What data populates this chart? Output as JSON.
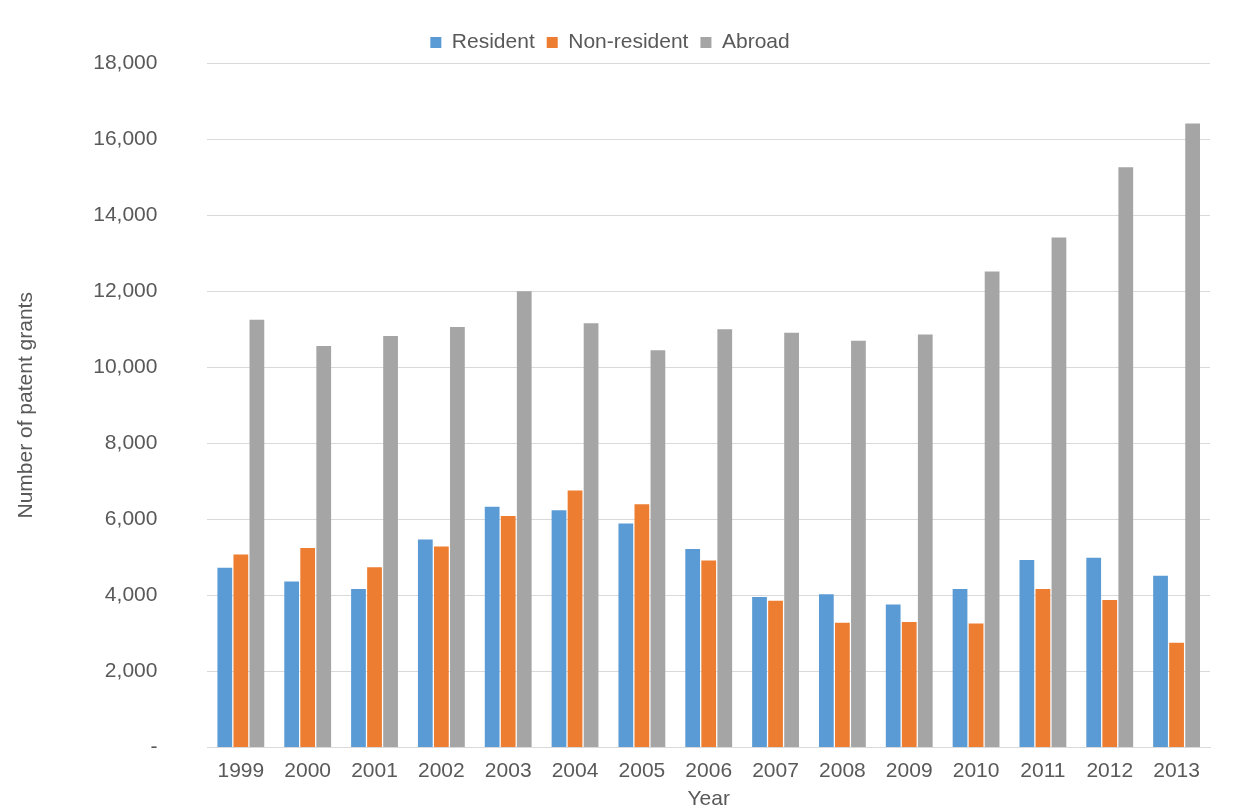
{
  "chart_data": {
    "type": "bar",
    "xlabel": "Year",
    "ylabel": "Number of patent grants",
    "categories": [
      "1999",
      "2000",
      "2001",
      "2002",
      "2003",
      "2004",
      "2005",
      "2006",
      "2007",
      "2008",
      "2009",
      "2010",
      "2011",
      "2012",
      "2013"
    ],
    "series": [
      {
        "name": "Resident",
        "color": "#5b9bd5",
        "values": [
          4730,
          4370,
          4170,
          5470,
          6330,
          6240,
          5890,
          5220,
          3960,
          4030,
          3760,
          4170,
          4930,
          4990,
          4520
        ]
      },
      {
        "name": "Non-resident",
        "color": "#ed7d31",
        "values": [
          5080,
          5250,
          4740,
          5290,
          6090,
          6760,
          6400,
          4920,
          3860,
          3280,
          3300,
          3260,
          4170,
          3880,
          2760
        ]
      },
      {
        "name": "Abroad",
        "color": "#a5a5a5",
        "values": [
          11250,
          10560,
          10820,
          11060,
          12000,
          11160,
          10450,
          11000,
          10910,
          10700,
          10860,
          12520,
          13410,
          15260,
          16410
        ]
      }
    ],
    "ylim": [
      0,
      18000
    ],
    "yticks": [
      {
        "value": 0,
        "label": "-"
      },
      {
        "value": 2000,
        "label": "2,000"
      },
      {
        "value": 4000,
        "label": "4,000"
      },
      {
        "value": 6000,
        "label": "6,000"
      },
      {
        "value": 8000,
        "label": "8,000"
      },
      {
        "value": 10000,
        "label": "10,000"
      },
      {
        "value": 12000,
        "label": "12,000"
      },
      {
        "value": 14000,
        "label": "14,000"
      },
      {
        "value": 16000,
        "label": "16,000"
      },
      {
        "value": 18000,
        "label": "18,000"
      }
    ],
    "grid": "y",
    "legend": "top"
  }
}
